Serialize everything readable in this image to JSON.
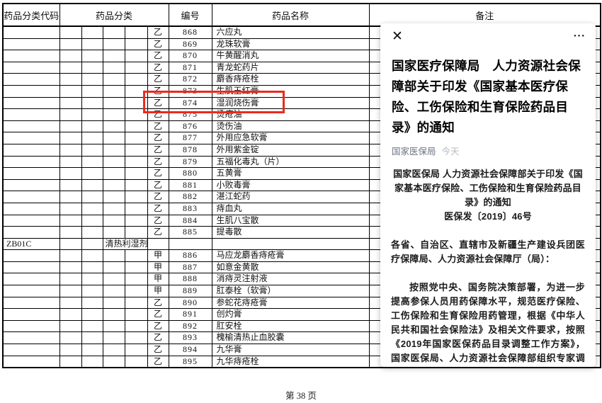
{
  "colors": {
    "highlight_red": "#ea2b1c",
    "source_link": "#6d7585",
    "time_gray": "#b6b9be"
  },
  "table": {
    "headers": {
      "code": "药品分类代码",
      "category": "药品分类",
      "number": "编号",
      "name": "药品名称",
      "remark": "备注"
    },
    "rows": [
      {
        "class": "乙",
        "no": "868",
        "name": "六应丸"
      },
      {
        "class": "乙",
        "no": "869",
        "name": "龙珠软膏"
      },
      {
        "class": "乙",
        "no": "870",
        "name": "牛黄醒消丸"
      },
      {
        "class": "乙",
        "no": "871",
        "name": "青龙蛇药片"
      },
      {
        "class": "乙",
        "no": "872",
        "name": "麝香痔疮栓"
      },
      {
        "class": "乙",
        "no": "873",
        "name": "生肌玉红膏"
      },
      {
        "class": "乙",
        "no": "874",
        "name": "湿润烧伤膏",
        "highlight": true
      },
      {
        "class": "乙",
        "no": "875",
        "name": "烫疮油"
      },
      {
        "class": "乙",
        "no": "876",
        "name": "烫伤油"
      },
      {
        "class": "乙",
        "no": "877",
        "name": "外用应急软膏"
      },
      {
        "class": "乙",
        "no": "878",
        "name": "外用紫金锭"
      },
      {
        "class": "乙",
        "no": "879",
        "name": "五福化毒丸（片）"
      },
      {
        "class": "乙",
        "no": "880",
        "name": "五黄膏"
      },
      {
        "class": "乙",
        "no": "881",
        "name": "小败毒膏"
      },
      {
        "class": "乙",
        "no": "882",
        "name": "湛江蛇药"
      },
      {
        "class": "乙",
        "no": "883",
        "name": "痔血丸"
      },
      {
        "class": "乙",
        "no": "884",
        "name": "生肌八宝散"
      },
      {
        "class": "乙",
        "no": "885",
        "name": "提毒散"
      },
      {
        "code": "ZB01C",
        "category": "清热利湿剂"
      },
      {
        "class": "甲",
        "no": "886",
        "name": "马应龙麝香痔疮膏"
      },
      {
        "class": "甲",
        "no": "887",
        "name": "如意金黄散"
      },
      {
        "class": "甲",
        "no": "888",
        "name": "消痔灵注射液"
      },
      {
        "class": "甲",
        "no": "889",
        "name": "肛泰栓（软膏）"
      },
      {
        "class": "乙",
        "no": "890",
        "name": "参蛇花痔疮膏"
      },
      {
        "class": "乙",
        "no": "891",
        "name": "创灼膏"
      },
      {
        "class": "乙",
        "no": "892",
        "name": "肛安栓"
      },
      {
        "class": "乙",
        "no": "893",
        "name": "槐榆清热止血胶囊"
      },
      {
        "class": "乙",
        "no": "894",
        "name": "九华膏"
      },
      {
        "class": "乙",
        "no": "895",
        "name": "九华痔疮栓"
      }
    ]
  },
  "footer": {
    "page": "第 38 页"
  },
  "overlay": {
    "close_icon": "✕",
    "more_icon": "●●●",
    "title": "国家医疗保障局　人力资源社会保障部关于印发《国家基本医疗保险、工伤保险和生育保险药品目录》的通知",
    "source": "国家医保局",
    "time": "今天",
    "doc_title": "国家医保局 人力资源社会保障部关于印发《国家基本医疗保险、工伤保险和生育保险药品目录》的通知",
    "doc_number": "医保发〔2019〕46号",
    "salutation": "各省、自治区、直辖市及新疆生产建设兵团医疗保障局、人力资源社会保障厅（局）：",
    "paragraph": "按照党中央、国务院决策部署，为进一步提高参保人员用药保障水平，规范医疗保险、工伤保险和生育保险用药管理，根据《中华人民共和国社会保险法》及相关文件要求，按照《2019年国家医保药品目录调整工作方案》，国家医保局、人力资源社会保障部组织专家调整制定了《国家基本医疗保险、工伤保险和生育保险药品目录》（以下简称《药品目录》）。"
  }
}
